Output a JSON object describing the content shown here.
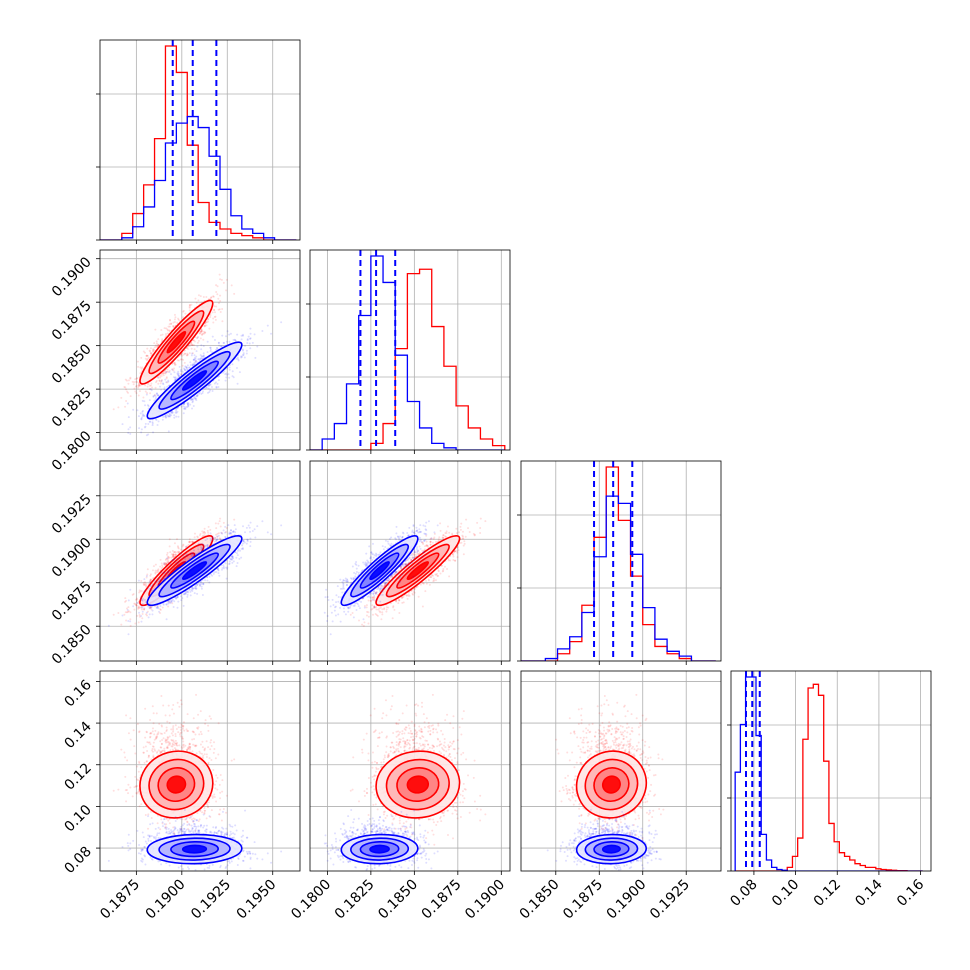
{
  "chart_data": {
    "type": "corner",
    "grid": true,
    "colors": {
      "series_a": "#ff0000",
      "series_b": "#0000ff",
      "quantile_lines": "#0000ff"
    },
    "series": [
      {
        "color": "#ff0000",
        "mean": [
          0.1897,
          0.1852,
          0.1882,
          0.1105
        ],
        "std": [
          0.001,
          0.0012,
          0.001,
          0.008
        ]
      },
      {
        "color": "#0000ff",
        "mean": [
          0.1907,
          0.183,
          0.1882,
          0.0795
        ],
        "std": [
          0.0013,
          0.0011,
          0.001,
          0.0035
        ]
      }
    ],
    "correlations": {
      "0-1": 0.93,
      "0-2": 0.92,
      "1-2": 0.92,
      "0-3": 0.05,
      "1-3": 0.05,
      "2-3": 0.05
    },
    "variables": [
      {
        "range": [
          0.1855,
          0.1965
        ],
        "ticks": [
          0.1875,
          0.19,
          0.1925,
          0.195
        ],
        "tick_labels": [
          "0.1875",
          "0.1900",
          "0.1925",
          "0.1950"
        ],
        "quantile_lines": [
          0.1895,
          0.1906,
          0.1919
        ]
      },
      {
        "range": [
          0.179,
          0.1905
        ],
        "ticks": [
          0.18,
          0.1825,
          0.185,
          0.1875,
          0.19
        ],
        "tick_labels": [
          "0.1800",
          "0.1825",
          "0.1850",
          "0.1875",
          "0.1900"
        ],
        "quantile_lines": [
          0.1819,
          0.1828,
          0.1839
        ]
      },
      {
        "range": [
          0.183,
          0.1945
        ],
        "ticks": [
          0.185,
          0.1875,
          0.19,
          0.1925
        ],
        "tick_labels": [
          "0.1850",
          "0.1875",
          "0.1900",
          "0.1925"
        ],
        "quantile_lines": [
          0.1872,
          0.1883,
          0.1894
        ]
      },
      {
        "range": [
          0.069,
          0.165
        ],
        "ticks": [
          0.08,
          0.1,
          0.12,
          0.14,
          0.16
        ],
        "tick_labels": [
          "0.08",
          "0.10",
          "0.12",
          "0.14",
          "0.16"
        ],
        "quantile_lines": [
          0.0762,
          0.0792,
          0.0828
        ]
      }
    ],
    "histograms": [
      {
        "edges": [
          0.1855,
          0.1861,
          0.1867,
          0.1873,
          0.1879,
          0.1885,
          0.1891,
          0.1897,
          0.1903,
          0.1909,
          0.1915,
          0.1921,
          0.1927,
          0.1933,
          0.1939,
          0.1945,
          0.1951,
          0.1957,
          0.1963
        ],
        "series": [
          {
            "color": "#ff0000",
            "counts": [
              0,
              0,
              3,
              12,
              25,
              46,
              88,
              76,
              43,
              17,
              8,
              5,
              3,
              2,
              1,
              0,
              0,
              0
            ]
          },
          {
            "color": "#0000ff",
            "counts": [
              0,
              0,
              1,
              6,
              15,
              27,
              44,
              53,
              56,
              51,
              38,
              23,
              11,
              5,
              3,
              1,
              0,
              0
            ]
          }
        ]
      },
      {
        "edges": [
          0.179,
          0.1797,
          0.1804,
          0.1811,
          0.1818,
          0.1825,
          0.1832,
          0.1839,
          0.1846,
          0.1853,
          0.186,
          0.1867,
          0.1874,
          0.1881,
          0.1888,
          0.1895,
          0.1902
        ],
        "series": [
          {
            "color": "#ff0000",
            "counts": [
              0,
              0,
              0,
              0,
              0,
              3,
              12,
              46,
              80,
              82,
              56,
              38,
              20,
              10,
              5,
              2
            ]
          },
          {
            "color": "#0000ff",
            "counts": [
              0,
              5,
              12,
              30,
              61,
              88,
              76,
              43,
              22,
              10,
              3,
              1,
              0,
              0,
              0,
              0
            ]
          }
        ]
      },
      {
        "edges": [
          0.183,
          0.1837,
          0.1844,
          0.1851,
          0.1858,
          0.1865,
          0.1872,
          0.1879,
          0.1886,
          0.1893,
          0.19,
          0.1907,
          0.1914,
          0.1921,
          0.1928,
          0.1935,
          0.1942
        ],
        "series": [
          {
            "color": "#ff0000",
            "counts": [
              0,
              0,
              0,
              3,
              8,
              23,
              51,
              80,
              58,
              35,
              15,
              6,
              3,
              1,
              0,
              0
            ]
          },
          {
            "color": "#0000ff",
            "counts": [
              0,
              0,
              1,
              5,
              10,
              20,
              43,
              68,
              65,
              44,
              22,
              9,
              4,
              2,
              0,
              0
            ]
          }
        ]
      },
      {
        "edges": [
          0.071,
          0.0735,
          0.076,
          0.0785,
          0.081,
          0.0835,
          0.086,
          0.0885,
          0.091,
          0.0935,
          0.096,
          0.0985,
          0.101,
          0.1035,
          0.106,
          0.1085,
          0.111,
          0.1135,
          0.116,
          0.1185,
          0.121,
          0.1235,
          0.126,
          0.1285,
          0.131,
          0.1335,
          0.136,
          0.1385,
          0.141,
          0.1435,
          0.146,
          0.1485,
          0.151,
          0.1535,
          0.156,
          0.1585,
          0.161
        ],
        "series": [
          {
            "color": "#ff0000",
            "counts": [
              0,
              0,
              0,
              0,
              0,
              0,
              0,
              0,
              0,
              0,
              1,
              4,
              9,
              36,
              50,
              51,
              48,
              30,
              13,
              8,
              5,
              4,
              3,
              2,
              1.5,
              1,
              1,
              0.6,
              0.4,
              0.3,
              0.2,
              0.1,
              0.1,
              0,
              0,
              0
            ]
          },
          {
            "color": "#0000ff",
            "counts": [
              27,
              40,
              53,
              53,
              37,
              10,
              3,
              1,
              0.4,
              0.2,
              0,
              0,
              0,
              0,
              0,
              0,
              0,
              0,
              0,
              0,
              0,
              0,
              0,
              0,
              0,
              0,
              0,
              0,
              0,
              0,
              0,
              0,
              0,
              0,
              0,
              0
            ]
          }
        ]
      }
    ]
  }
}
